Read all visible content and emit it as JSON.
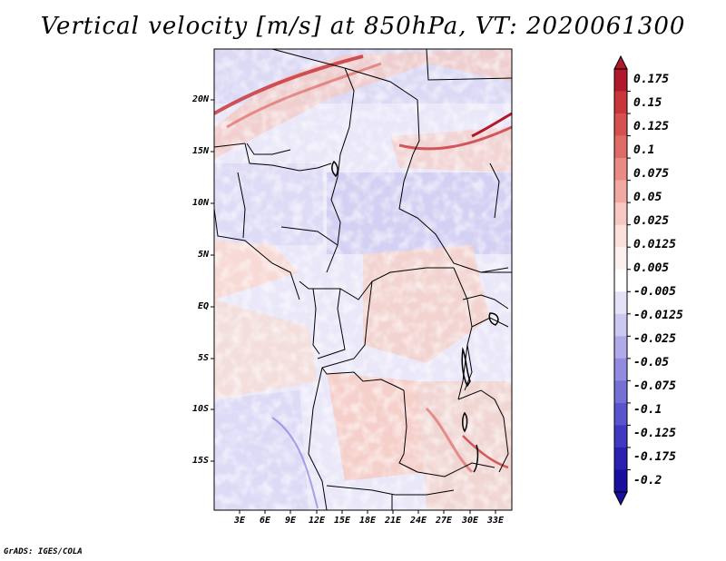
{
  "title": "Vertical velocity [m/s] at 850hPa, VT: 2020061300",
  "credit": "GrADS: IGES/COLA",
  "map": {
    "lat_labels": [
      "20N",
      "15N",
      "10N",
      "5N",
      "EQ",
      "5S",
      "10S",
      "15S"
    ],
    "lon_labels": [
      "3E",
      "6E",
      "9E",
      "12E",
      "15E",
      "18E",
      "21E",
      "24E",
      "27E",
      "30E",
      "33E"
    ]
  },
  "colorbar": {
    "levels": [
      "0.175",
      "0.15",
      "0.125",
      "0.1",
      "0.075",
      "0.05",
      "0.025",
      "0.0125",
      "0.005",
      "-0.005",
      "-0.0125",
      "-0.025",
      "-0.05",
      "-0.075",
      "-0.1",
      "-0.125",
      "-0.175",
      "-0.2"
    ],
    "colors": [
      "#b2182b",
      "#c8363c",
      "#d6504f",
      "#e06a65",
      "#e98a84",
      "#f1a9a3",
      "#f7c7c2",
      "#fbe0dc",
      "#fdf1ef",
      "#ffffff",
      "#e4e2f7",
      "#cbc8f2",
      "#b0aaea",
      "#928ce0",
      "#7670d6",
      "#5a54cc",
      "#3f38c0",
      "#2a1fb0",
      "#190f9e"
    ]
  }
}
